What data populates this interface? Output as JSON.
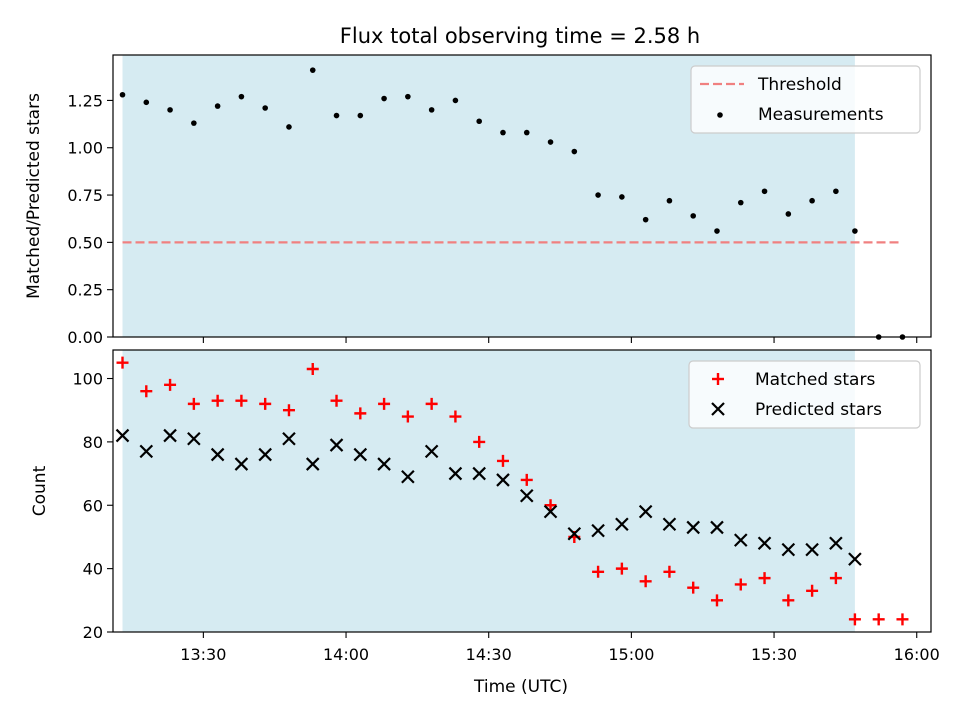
{
  "title": "Flux total observing time = 2.58 h",
  "chart_data": [
    {
      "type": "scatter",
      "ylabel": "Matched/Predicted stars",
      "xlabel": "",
      "xlim": [
        "13:11",
        "16:03"
      ],
      "ylim": [
        0.0,
        1.49
      ],
      "yticks": [
        0.0,
        0.25,
        0.5,
        0.75,
        1.0,
        1.25
      ],
      "ytick_labels": [
        "0.00",
        "0.25",
        "0.50",
        "0.75",
        "1.00",
        "1.25"
      ],
      "grid": false,
      "legend_position": "top-right",
      "shaded_region": {
        "x": [
          "13:13",
          "15:47"
        ],
        "color": "#add8e6"
      },
      "threshold": {
        "name": "Threshold",
        "y": 0.5,
        "x": [
          "13:13",
          "15:57"
        ],
        "color": "#f08080",
        "style": "dashed"
      },
      "series": [
        {
          "name": "Measurements",
          "color": "#000000",
          "marker": "dot",
          "x": [
            "13:13",
            "13:18",
            "13:23",
            "13:28",
            "13:33",
            "13:38",
            "13:43",
            "13:48",
            "13:53",
            "13:58",
            "14:03",
            "14:08",
            "14:13",
            "14:18",
            "14:23",
            "14:28",
            "14:33",
            "14:38",
            "14:43",
            "14:48",
            "14:53",
            "14:58",
            "15:03",
            "15:08",
            "15:13",
            "15:18",
            "15:23",
            "15:28",
            "15:33",
            "15:38",
            "15:43",
            "15:47",
            "15:52",
            "15:57"
          ],
          "values": [
            1.28,
            1.24,
            1.2,
            1.13,
            1.22,
            1.27,
            1.21,
            1.11,
            1.41,
            1.17,
            1.17,
            1.26,
            1.27,
            1.2,
            1.25,
            1.14,
            1.08,
            1.08,
            1.03,
            0.98,
            0.75,
            0.74,
            0.62,
            0.72,
            0.64,
            0.56,
            0.71,
            0.77,
            0.65,
            0.72,
            0.77,
            0.56,
            0.0,
            0.0
          ]
        }
      ]
    },
    {
      "type": "scatter",
      "ylabel": "Count",
      "xlabel": "Time (UTC)",
      "xlim": [
        "13:11",
        "16:03"
      ],
      "ylim": [
        20,
        109
      ],
      "yticks": [
        20,
        40,
        60,
        80,
        100
      ],
      "ytick_labels": [
        "20",
        "40",
        "60",
        "80",
        "100"
      ],
      "xtick_labels": [
        "13:30",
        "14:00",
        "14:30",
        "15:00",
        "15:30",
        "16:00"
      ],
      "grid": false,
      "legend_position": "top-right",
      "shaded_region": {
        "x": [
          "13:13",
          "15:47"
        ],
        "color": "#add8e6"
      },
      "series": [
        {
          "name": "Matched stars",
          "color": "#ff0000",
          "marker": "plus",
          "x": [
            "13:13",
            "13:18",
            "13:23",
            "13:28",
            "13:33",
            "13:38",
            "13:43",
            "13:48",
            "13:53",
            "13:58",
            "14:03",
            "14:08",
            "14:13",
            "14:18",
            "14:23",
            "14:28",
            "14:33",
            "14:38",
            "14:43",
            "14:48",
            "14:53",
            "14:58",
            "15:03",
            "15:08",
            "15:13",
            "15:18",
            "15:23",
            "15:28",
            "15:33",
            "15:38",
            "15:43",
            "15:47",
            "15:52",
            "15:57"
          ],
          "values": [
            105,
            96,
            98,
            92,
            93,
            93,
            92,
            90,
            103,
            93,
            89,
            92,
            88,
            92,
            88,
            80,
            74,
            68,
            60,
            50,
            39,
            40,
            36,
            39,
            34,
            30,
            35,
            37,
            30,
            33,
            37,
            24,
            24,
            24
          ]
        },
        {
          "name": "Predicted stars",
          "color": "#000000",
          "marker": "x",
          "x": [
            "13:13",
            "13:18",
            "13:23",
            "13:28",
            "13:33",
            "13:38",
            "13:43",
            "13:48",
            "13:53",
            "13:58",
            "14:03",
            "14:08",
            "14:13",
            "14:18",
            "14:23",
            "14:28",
            "14:33",
            "14:38",
            "14:43",
            "14:48",
            "14:53",
            "14:58",
            "15:03",
            "15:08",
            "15:13",
            "15:18",
            "15:23",
            "15:28",
            "15:33",
            "15:38",
            "15:43",
            "15:47"
          ],
          "values": [
            82,
            77,
            82,
            81,
            76,
            73,
            76,
            81,
            73,
            79,
            76,
            73,
            69,
            77,
            70,
            70,
            68,
            63,
            58,
            51,
            52,
            54,
            58,
            54,
            53,
            53,
            49,
            48,
            46,
            46,
            48,
            43
          ]
        }
      ]
    }
  ]
}
